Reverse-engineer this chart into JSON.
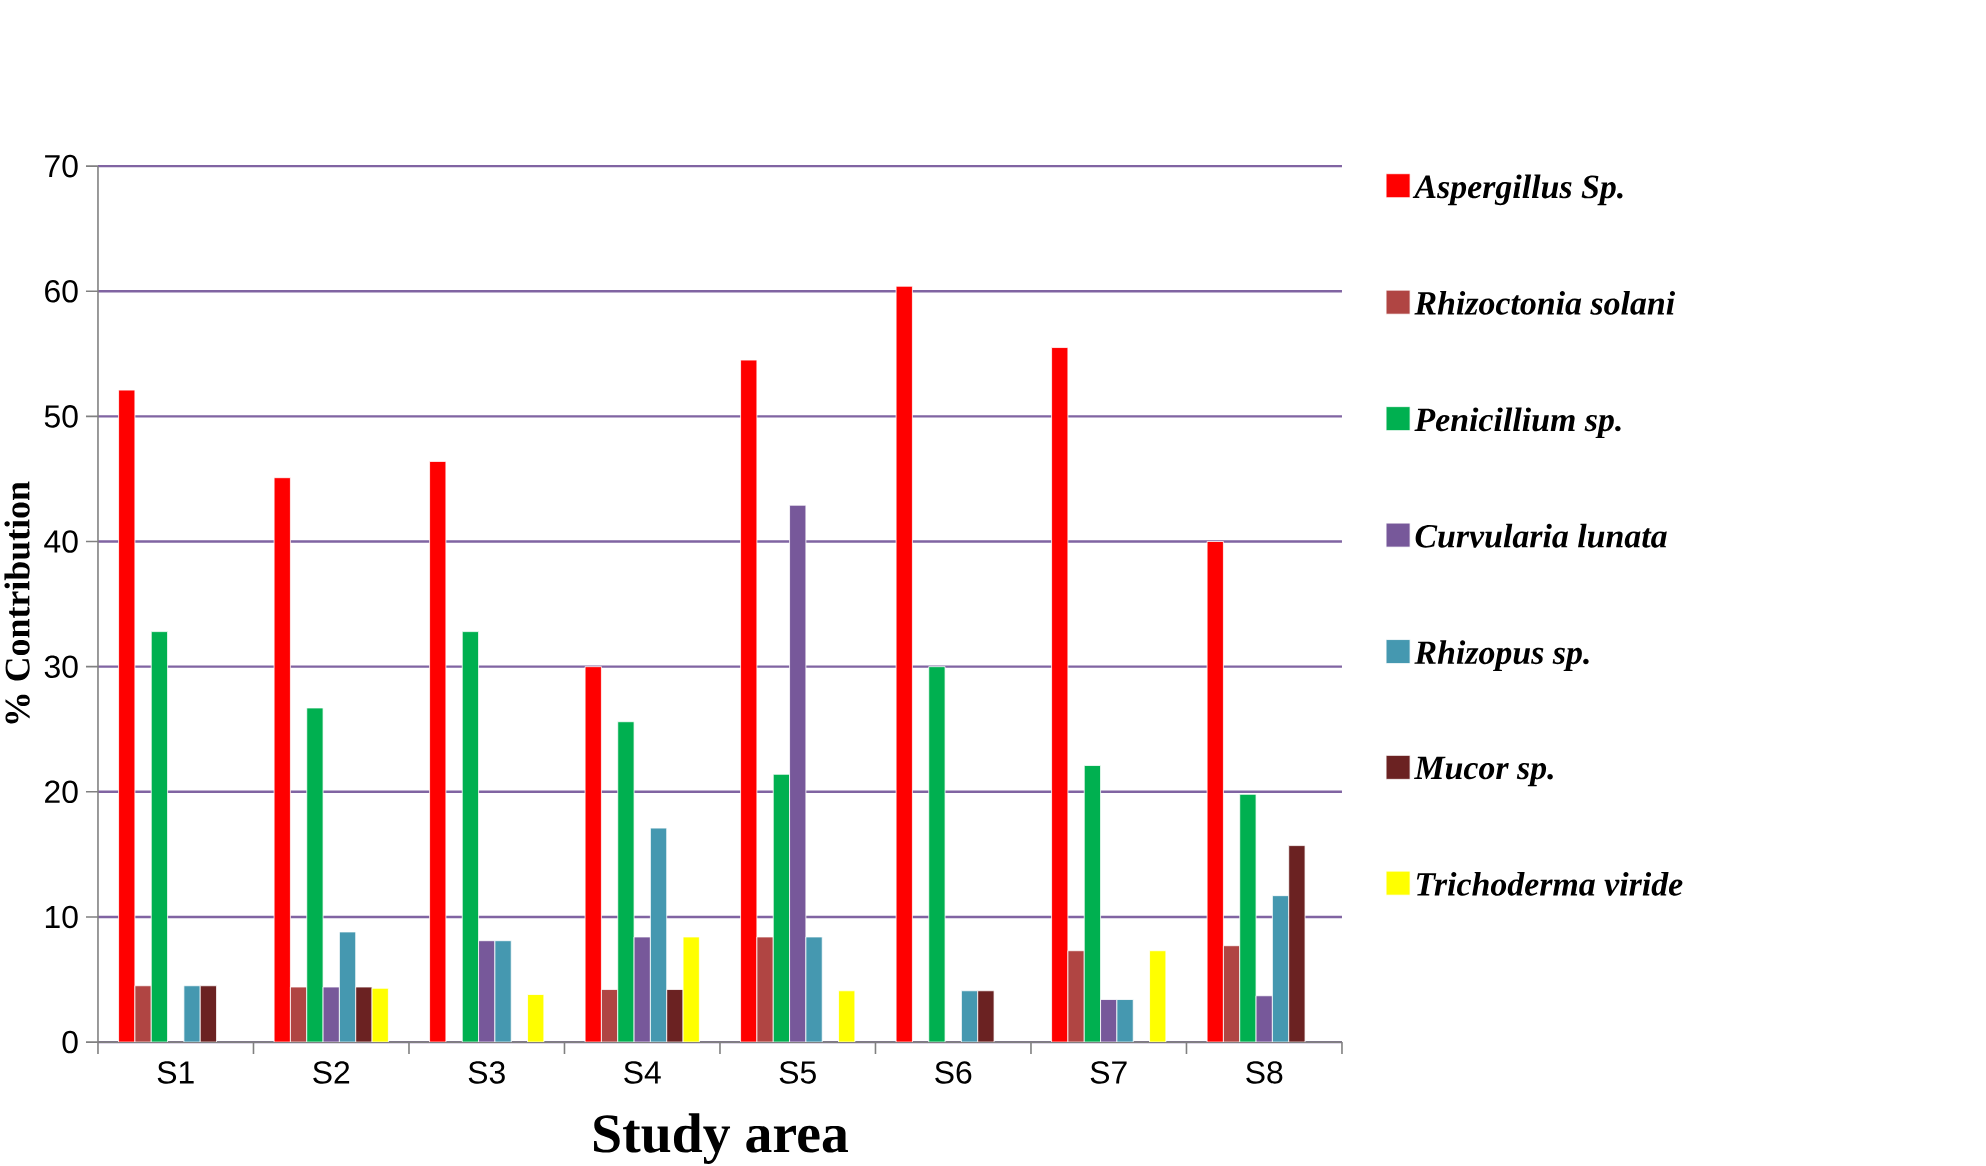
{
  "chart_data": {
    "type": "bar",
    "xlabel": "Study area",
    "ylabel": "% Contribution",
    "categories": [
      "S1",
      "S2",
      "S3",
      "S4",
      "S5",
      "S6",
      "S7",
      "S8"
    ],
    "series": [
      {
        "name": "Aspergillus Sp.",
        "color": "#ff0000",
        "values": [
          52.1,
          45.1,
          46.4,
          30.0,
          54.5,
          60.4,
          55.5,
          40.0
        ]
      },
      {
        "name": "Rhizoctonia solani",
        "color": "#b04543",
        "values": [
          4.5,
          4.4,
          null,
          4.2,
          8.4,
          null,
          7.3,
          7.7
        ]
      },
      {
        "name": "Penicillium sp.",
        "color": "#00b050",
        "values": [
          32.8,
          26.7,
          32.8,
          25.6,
          21.4,
          30.0,
          22.1,
          19.8
        ]
      },
      {
        "name": "Curvularia lunata",
        "color": "#77589a",
        "values": [
          null,
          4.4,
          8.1,
          8.4,
          42.9,
          null,
          3.4,
          3.7
        ]
      },
      {
        "name": "Rhizopus sp.",
        "color": "#4598b0",
        "values": [
          4.5,
          8.8,
          8.1,
          17.1,
          8.4,
          4.1,
          3.4,
          11.7
        ]
      },
      {
        "name": "Mucor sp.",
        "color": "#6b2222",
        "values": [
          4.5,
          4.4,
          null,
          4.2,
          null,
          4.1,
          null,
          15.7
        ]
      },
      {
        "name": "Trichoderma viride",
        "color": "#ffff00",
        "values": [
          null,
          4.3,
          3.8,
          8.4,
          4.1,
          null,
          7.3,
          null
        ]
      }
    ],
    "ylim": [
      0,
      70
    ],
    "yticks": [
      0,
      10,
      20,
      30,
      40,
      50,
      60,
      70
    ],
    "grid": "y",
    "legend": "right"
  }
}
